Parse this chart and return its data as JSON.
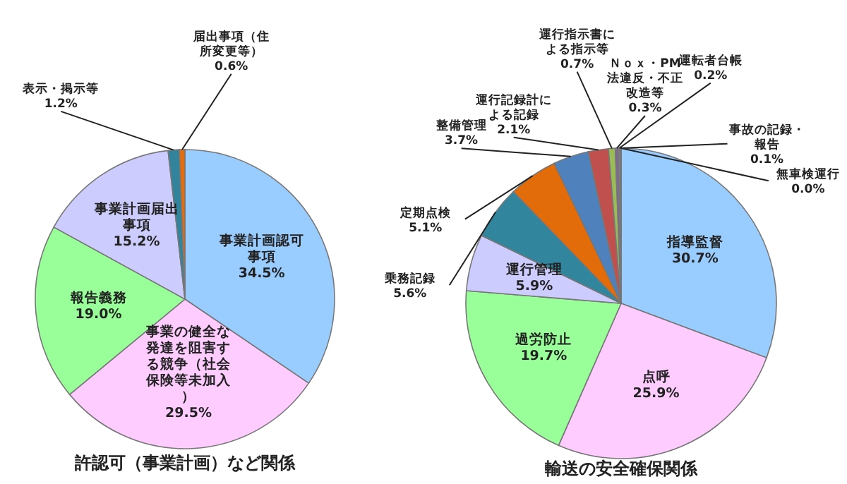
{
  "chart_data": [
    {
      "type": "pie",
      "title": "許認可（事業計画）など関係",
      "categories": [
        "事業計画認可事項",
        "事業の健全な発達を阻害する競争（社会保険等未加入）",
        "報告義務",
        "事業計画届出事項",
        "表示・掲示等",
        "届出事項（住所変更等）"
      ],
      "values": [
        34.5,
        29.5,
        19.0,
        15.2,
        1.2,
        0.6
      ],
      "value_labels": [
        "34.5%",
        "29.5%",
        "19.0%",
        "15.2%",
        "1.2%",
        "0.6%"
      ],
      "colors": [
        "#99ccff",
        "#ffccff",
        "#99ff99",
        "#ccccff",
        "#31849b",
        "#e46c0a"
      ]
    },
    {
      "type": "pie",
      "title": "輸送の安全確保関係",
      "categories": [
        "指導監督",
        "点呼",
        "過労防止",
        "運行管理",
        "乗務記録",
        "定期点検",
        "整備管理",
        "運行記録計による記録",
        "運行指示書による指示等",
        "Ｎｏｘ・PM法違反・不正改造等",
        "運転者台帳",
        "事故の記録・報告",
        "無車検運行"
      ],
      "values": [
        30.7,
        25.9,
        19.7,
        5.9,
        5.6,
        5.1,
        3.7,
        2.1,
        0.7,
        0.3,
        0.2,
        0.1,
        0.0
      ],
      "value_labels": [
        "30.7%",
        "25.9%",
        "19.7%",
        "5.9%",
        "5.6%",
        "5.1%",
        "3.7%",
        "2.1%",
        "0.7%",
        "0.3%",
        "0.2%",
        "0.1%",
        "0.0%"
      ],
      "colors": [
        "#99ccff",
        "#ffccff",
        "#99ff99",
        "#ccccff",
        "#31859c",
        "#e26b0a",
        "#4f81bd",
        "#c0504d",
        "#9bbb59",
        "#8064a2",
        "#7f7f7f",
        "#4bacc6",
        "#f79646"
      ]
    }
  ]
}
